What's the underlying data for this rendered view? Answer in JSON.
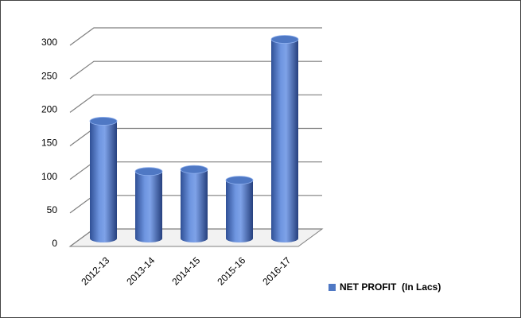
{
  "chart_data": {
    "type": "bar",
    "style": "3d-cylinder",
    "categories": [
      "2012-13",
      "2013-14",
      "2014-15",
      "2015-16",
      "2016-17"
    ],
    "series": [
      {
        "name": "NET PROFIT  (In Lacs)",
        "color": "#4f78c4",
        "values": [
          175,
          100,
          103,
          87,
          297
        ]
      }
    ],
    "ylim": [
      0,
      300
    ],
    "yticks": [
      0,
      50,
      100,
      150,
      200,
      250,
      300
    ],
    "grid": true,
    "legend": "bottom-right"
  }
}
